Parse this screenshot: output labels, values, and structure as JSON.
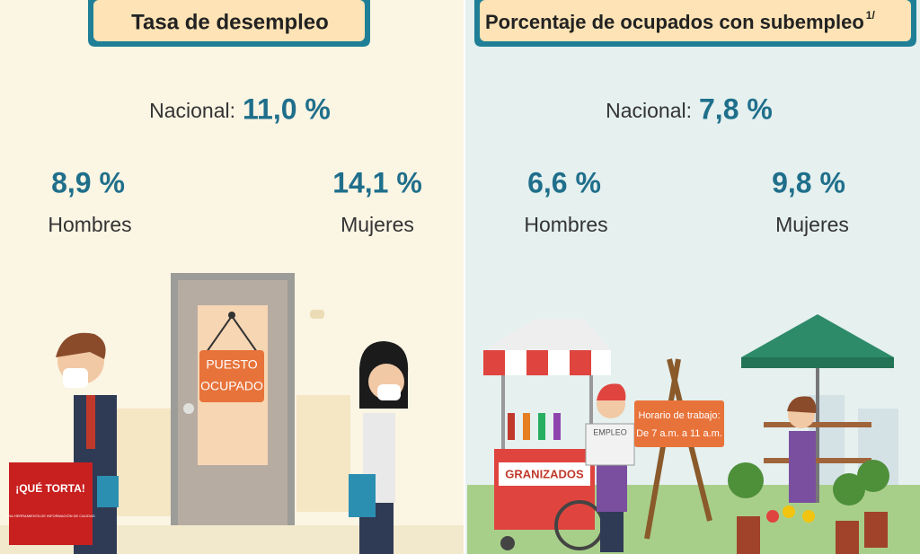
{
  "left": {
    "title": "Tasa de desempleo",
    "national_label": "Nacional:",
    "national_value": "11,0 %",
    "men_value": "8,9 %",
    "men_label": "Hombres",
    "women_value": "14,1 %",
    "women_label": "Mujeres",
    "sign": [
      "PUESTO",
      "OCUPADO"
    ]
  },
  "right": {
    "title": "Porcentaje de ocupados con subempleo",
    "footnote": "1/",
    "national_label": "Nacional:",
    "national_value": "7,8 %",
    "men_value": "6,6 %",
    "men_label": "Hombres",
    "women_value": "9,8 %",
    "women_label": "Mujeres",
    "cart_label": "GRANIZADOS",
    "newspaper": "EMPLEO",
    "schedule": [
      "Horario de trabajo:",
      "De 7 a.m. a 11 a.m."
    ]
  },
  "logo": {
    "name": "¡QUÉ TORTA!",
    "tagline": "UNA HERRAMIENTA DE INFORMACIÓN DE CALIDAD"
  }
}
